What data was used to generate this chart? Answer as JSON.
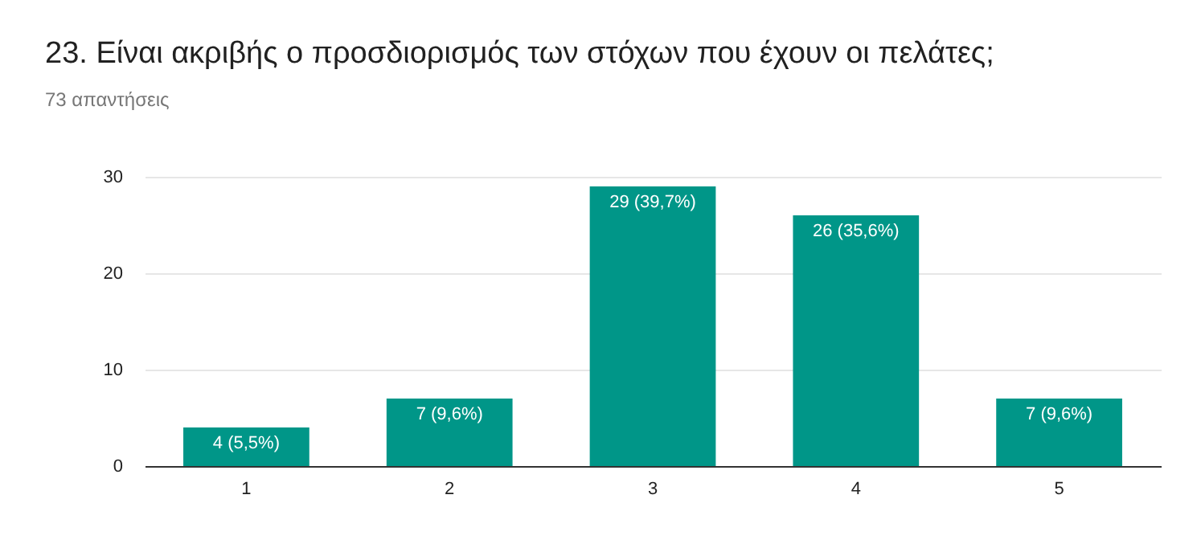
{
  "chart_data": {
    "type": "bar",
    "title": "23. Είναι ακριβής ο προσδιορισμός των στόχων που έχουν οι πελάτες;",
    "subtitle": "73 απαντήσεις",
    "categories": [
      "1",
      "2",
      "3",
      "4",
      "5"
    ],
    "values": [
      4,
      7,
      29,
      26,
      7
    ],
    "value_labels": [
      "4 (5,5%)",
      "7 (9,6%)",
      "29 (39,7%)",
      "26 (35,6%)",
      "7 (9,6%)"
    ],
    "color": "#009688",
    "ylim": [
      0,
      30
    ],
    "yticks": [
      0,
      10,
      20,
      30
    ],
    "grid": "y"
  }
}
